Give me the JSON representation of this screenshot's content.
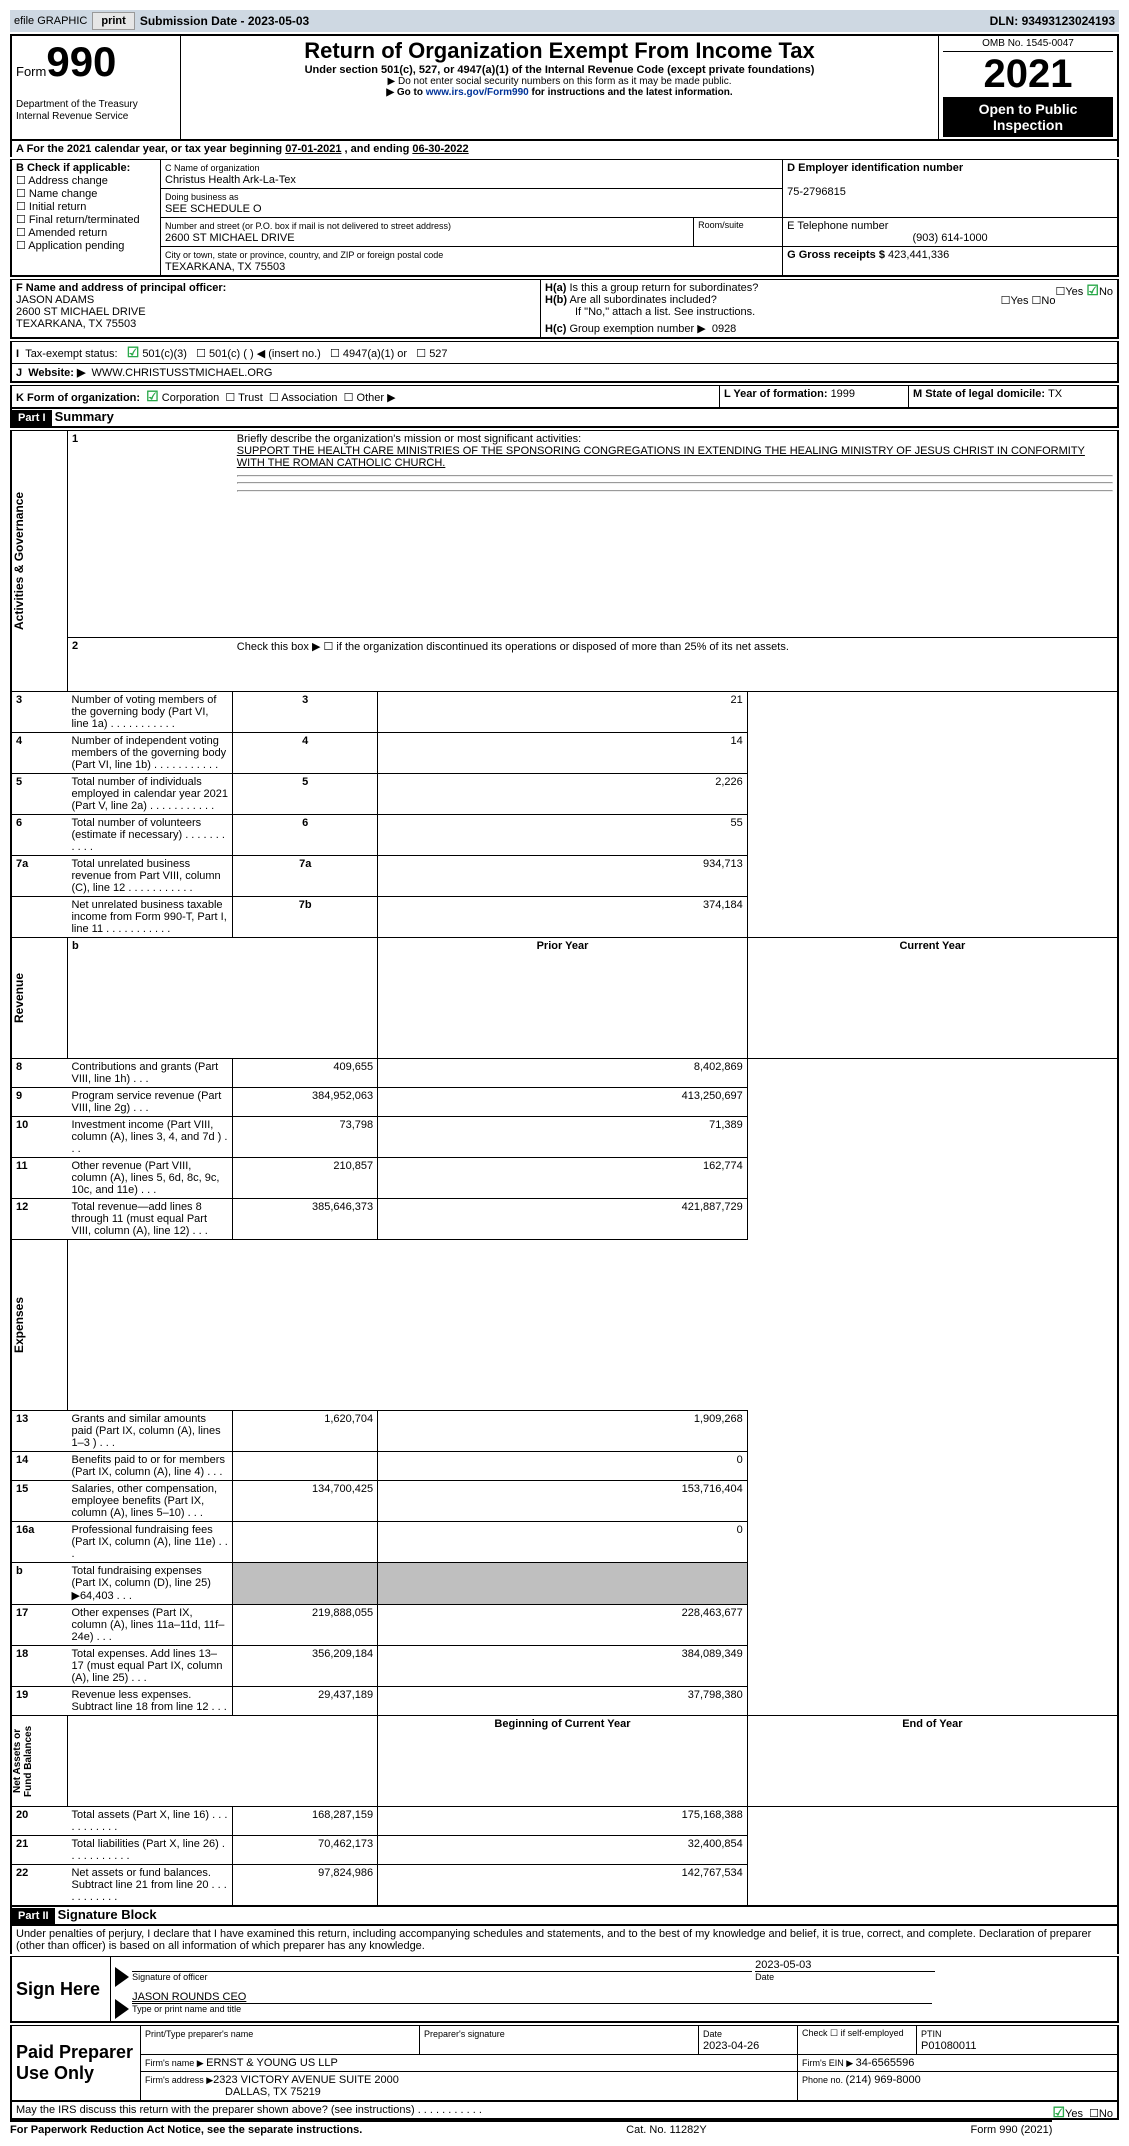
{
  "topbar": {
    "efile": "efile GRAPHIC",
    "print": "print",
    "sub_label": "Submission Date - ",
    "sub_date": "2023-05-03",
    "dln_label": "DLN: ",
    "dln": "93493123024193"
  },
  "header": {
    "form_word": "Form",
    "form_no": "990",
    "title": "Return of Organization Exempt From Income Tax",
    "sub1": "Under section 501(c), 527, or 4947(a)(1) of the Internal Revenue Code (except private foundations)",
    "sub2": "▶ Do not enter social security numbers on this form as it may be made public.",
    "sub3a": "▶ Go to ",
    "sub3link": "www.irs.gov/Form990",
    "sub3b": " for instructions and the latest information.",
    "dept": "Department of the Treasury\nInternal Revenue Service",
    "omb": "OMB No. 1545-0047",
    "year": "2021",
    "open": "Open to Public Inspection"
  },
  "A": {
    "line": "A For the 2021 calendar year, or tax year beginning ",
    "begin": "07-01-2021",
    "mid": " , and ending ",
    "end": "06-30-2022"
  },
  "B": {
    "label": "B Check if applicable:",
    "items": [
      "Address change",
      "Name change",
      "Initial return",
      "Final return/terminated",
      "Amended return",
      "Application pending"
    ]
  },
  "C": {
    "name_lbl": "C Name of organization",
    "name": "Christus Health Ark-La-Tex",
    "dba_lbl": "Doing business as",
    "dba": "SEE SCHEDULE O",
    "addr_lbl": "Number and street (or P.O. box if mail is not delivered to street address)",
    "addr": "2600 ST MICHAEL DRIVE",
    "room_lbl": "Room/suite",
    "city_lbl": "City or town, state or province, country, and ZIP or foreign postal code",
    "city": "TEXARKANA, TX  75503"
  },
  "D": {
    "lbl": "D Employer identification number",
    "val": "75-2796815"
  },
  "E": {
    "lbl": "E Telephone number",
    "val": "(903) 614-1000"
  },
  "G": {
    "lbl": "G Gross receipts $ ",
    "val": "423,441,336"
  },
  "F": {
    "lbl": "F  Name and address of principal officer:",
    "name": "JASON ADAMS",
    "addr1": "2600 ST MICHAEL DRIVE",
    "addr2": "TEXARKANA, TX  75503"
  },
  "H": {
    "a": "Is this a group return for subordinates?",
    "b": "Are all subordinates included?",
    "bnote": "If \"No,\" attach a list. See instructions.",
    "c": "Group exemption number ▶",
    "cval": "0928",
    "yes": "Yes",
    "no": "No"
  },
  "I": {
    "lbl": "Tax-exempt status:",
    "o1": "501(c)(3)",
    "o2": "501(c) (  ) ◀ (insert no.)",
    "o3": "4947(a)(1) or",
    "o4": "527"
  },
  "J": {
    "lbl": "Website: ▶",
    "val": "WWW.CHRISTUSSTMICHAEL.ORG"
  },
  "K": {
    "lbl": "K Form of organization:",
    "o1": "Corporation",
    "o2": "Trust",
    "o3": "Association",
    "o4": "Other ▶"
  },
  "L": {
    "lbl": "L Year of formation: ",
    "val": "1999"
  },
  "M": {
    "lbl": "M State of legal domicile: ",
    "val": "TX"
  },
  "part1": {
    "bar": "Part I",
    "title": "Summary"
  },
  "p1": {
    "l1_lbl": "Briefly describe the organization's mission or most significant activities:",
    "l1_val": "SUPPORT THE HEALTH CARE MINISTRIES OF THE SPONSORING CONGREGATIONS IN EXTENDING THE HEALING MINISTRY OF JESUS CHRIST IN CONFORMITY WITH THE ROMAN CATHOLIC CHURCH.",
    "l2": "Check this box ▶ ☐ if the organization discontinued its operations or disposed of more than 25% of its net assets.",
    "rows_ag": [
      {
        "n": "3",
        "t": "Number of voting members of the governing body (Part VI, line 1a)",
        "box": "3",
        "v": "21"
      },
      {
        "n": "4",
        "t": "Number of independent voting members of the governing body (Part VI, line 1b)",
        "box": "4",
        "v": "14"
      },
      {
        "n": "5",
        "t": "Total number of individuals employed in calendar year 2021 (Part V, line 2a)",
        "box": "5",
        "v": "2,226"
      },
      {
        "n": "6",
        "t": "Total number of volunteers (estimate if necessary)",
        "box": "6",
        "v": "55"
      },
      {
        "n": "7a",
        "t": "Total unrelated business revenue from Part VIII, column (C), line 12",
        "box": "7a",
        "v": "934,713"
      },
      {
        "n": "",
        "t": "Net unrelated business taxable income from Form 990-T, Part I, line 11",
        "box": "7b",
        "v": "374,184"
      }
    ],
    "py": "Prior Year",
    "cy": "Current Year",
    "rev": [
      {
        "n": "8",
        "t": "Contributions and grants (Part VIII, line 1h)",
        "p": "409,655",
        "c": "8,402,869"
      },
      {
        "n": "9",
        "t": "Program service revenue (Part VIII, line 2g)",
        "p": "384,952,063",
        "c": "413,250,697"
      },
      {
        "n": "10",
        "t": "Investment income (Part VIII, column (A), lines 3, 4, and 7d )",
        "p": "73,798",
        "c": "71,389"
      },
      {
        "n": "11",
        "t": "Other revenue (Part VIII, column (A), lines 5, 6d, 8c, 9c, 10c, and 11e)",
        "p": "210,857",
        "c": "162,774"
      },
      {
        "n": "12",
        "t": "Total revenue—add lines 8 through 11 (must equal Part VIII, column (A), line 12)",
        "p": "385,646,373",
        "c": "421,887,729"
      }
    ],
    "exp": [
      {
        "n": "13",
        "t": "Grants and similar amounts paid (Part IX, column (A), lines 1–3 )",
        "p": "1,620,704",
        "c": "1,909,268"
      },
      {
        "n": "14",
        "t": "Benefits paid to or for members (Part IX, column (A), line 4)",
        "p": "",
        "c": "0"
      },
      {
        "n": "15",
        "t": "Salaries, other compensation, employee benefits (Part IX, column (A), lines 5–10)",
        "p": "134,700,425",
        "c": "153,716,404"
      },
      {
        "n": "16a",
        "t": "Professional fundraising fees (Part IX, column (A), line 11e)",
        "p": "",
        "c": "0"
      },
      {
        "n": "b",
        "t": "Total fundraising expenses (Part IX, column (D), line 25) ▶64,403",
        "p": "GREY",
        "c": "GREY"
      },
      {
        "n": "17",
        "t": "Other expenses (Part IX, column (A), lines 11a–11d, 11f–24e)",
        "p": "219,888,055",
        "c": "228,463,677"
      },
      {
        "n": "18",
        "t": "Total expenses. Add lines 13–17 (must equal Part IX, column (A), line 25)",
        "p": "356,209,184",
        "c": "384,089,349"
      },
      {
        "n": "19",
        "t": "Revenue less expenses. Subtract line 18 from line 12",
        "p": "29,437,189",
        "c": "37,798,380"
      }
    ],
    "bcy": "Beginning of Current Year",
    "ecy": "End of Year",
    "net": [
      {
        "n": "20",
        "t": "Total assets (Part X, line 16)",
        "p": "168,287,159",
        "c": "175,168,388"
      },
      {
        "n": "21",
        "t": "Total liabilities (Part X, line 26)",
        "p": "70,462,173",
        "c": "32,400,854"
      },
      {
        "n": "22",
        "t": "Net assets or fund balances. Subtract line 21 from line 20",
        "p": "97,824,986",
        "c": "142,767,534"
      }
    ],
    "vag": "Activities & Governance",
    "vrev": "Revenue",
    "vexp": "Expenses",
    "vnet": "Net Assets or Fund Balances"
  },
  "part2": {
    "bar": "Part II",
    "title": "Signature Block",
    "decl": "Under penalties of perjury, I declare that I have examined this return, including accompanying schedules and statements, and to the best of my knowledge and belief, it is true, correct, and complete. Declaration of preparer (other than officer) is based on all information of which preparer has any knowledge."
  },
  "sign": {
    "here": "Sign Here",
    "sig_lbl": "Signature of officer",
    "date_lbl": "Date",
    "date": "2023-05-03",
    "name": "JASON ROUNDS CEO",
    "name_lbl": "Type or print name and title"
  },
  "prep": {
    "lbl": "Paid Preparer Use Only",
    "pn_lbl": "Print/Type preparer's name",
    "ps_lbl": "Preparer's signature",
    "d_lbl": "Date",
    "d": "2023-04-26",
    "se_lbl": "Check ☐ if self-employed",
    "ptin_lbl": "PTIN",
    "ptin": "P01080011",
    "fn_lbl": "Firm's name   ▶ ",
    "fn": "ERNST & YOUNG US LLP",
    "fe_lbl": "Firm's EIN ▶ ",
    "fe": "34-6565596",
    "fa_lbl": "Firm's address ▶",
    "fa1": "2323 VICTORY AVENUE SUITE 2000",
    "fa2": "DALLAS, TX  75219",
    "ph_lbl": "Phone no. ",
    "ph": "(214) 969-8000"
  },
  "discuss": "May the IRS discuss this return with the preparer shown above? (see instructions)",
  "foot": {
    "l": "For Paperwork Reduction Act Notice, see the separate instructions.",
    "c": "Cat. No. 11282Y",
    "r": "Form 990 (2021)"
  }
}
